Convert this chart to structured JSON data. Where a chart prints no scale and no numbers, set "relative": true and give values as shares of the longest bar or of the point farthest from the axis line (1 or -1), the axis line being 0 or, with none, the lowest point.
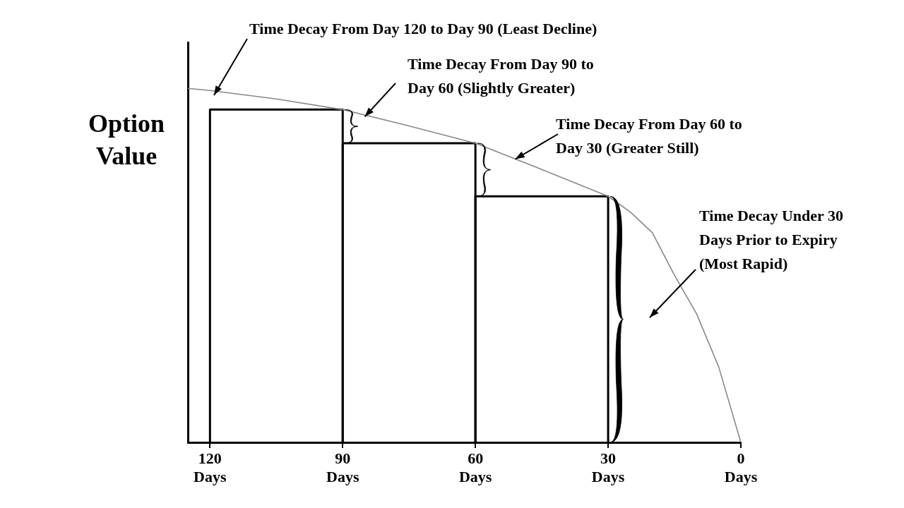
{
  "chart_data": {
    "type": "line",
    "relative": true,
    "ylabel": "Option Value",
    "xlim": [
      125,
      0
    ],
    "xticks": [
      {
        "value": 120,
        "label": "120 Days"
      },
      {
        "value": 90,
        "label": "90 Days"
      },
      {
        "value": 60,
        "label": "60 Days"
      },
      {
        "value": 30,
        "label": "30 Days"
      },
      {
        "value": 0,
        "label": "0 Days"
      }
    ],
    "series": [
      {
        "color": "#888888",
        "x": [
          125,
          120,
          105,
          90,
          75,
          60,
          45,
          30,
          25,
          20,
          15,
          10,
          5,
          0
        ],
        "values": [
          1,
          0.994,
          0.97,
          0.94,
          0.894,
          0.845,
          0.771,
          0.695,
          0.651,
          0.592,
          0.472,
          0.363,
          0.213,
          0
        ]
      },
      {
        "color": "#000000",
        "x": [
          120,
          120,
          90,
          90
        ],
        "values": [
          0,
          0.94,
          0.94,
          0
        ]
      },
      {
        "color": "#000000",
        "x": [
          90,
          90,
          60,
          60
        ],
        "values": [
          0,
          0.845,
          0.845,
          0
        ]
      },
      {
        "color": "#000000",
        "x": [
          60,
          60,
          30,
          30
        ],
        "values": [
          0,
          0.695,
          0.695,
          0
        ]
      }
    ],
    "annotations": [
      "Time Decay From Day 120 to Day 90 (Least Decline)",
      {
        "text": "Time Decay From Day 90 to Day 60 (Slightly Greater)",
        "x": 85,
        "y": 0.92
      },
      {
        "text": "Time Decay From Day 60 to Day 30 (Greater Still)",
        "x": 51,
        "y": 0.8
      },
      "Time Decay Under 30 Days Prior to Expiry (Most Rapid)"
    ],
    "grid": false,
    "legend": false,
    "marker": "none",
    "line_style": "solid"
  }
}
